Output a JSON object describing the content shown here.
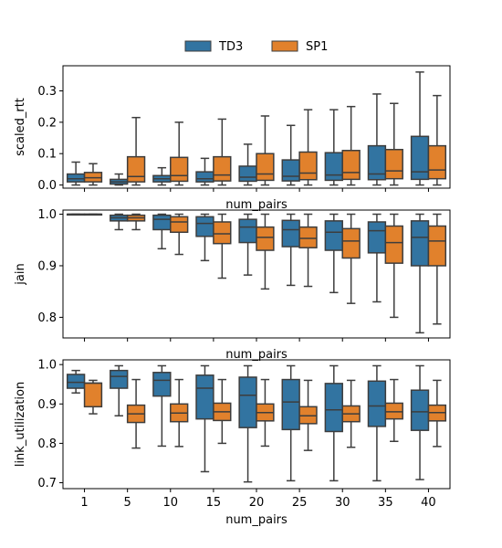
{
  "legend": {
    "placement": "top-center",
    "entries": [
      {
        "name": "TD3",
        "color": "#3274a1"
      },
      {
        "name": "SP1",
        "color": "#e1812c"
      }
    ]
  },
  "colors": {
    "TD3": "#3274a1",
    "SP1": "#e1812c",
    "whisker": "#3d3d3d"
  },
  "chart_data": [
    {
      "type": "box",
      "xlabel": "num_pairs",
      "ylabel": "scaled_rtt",
      "categories": [
        "1",
        "5",
        "10",
        "15",
        "20",
        "25",
        "30",
        "35",
        "40"
      ],
      "ylim": [
        -0.01,
        0.38
      ],
      "yticks": [
        0.0,
        0.1,
        0.2,
        0.3
      ],
      "ytick_labels": [
        "0.0",
        "0.1",
        "0.2",
        "0.3"
      ],
      "show_xtick_labels": false,
      "series": [
        {
          "name": "TD3",
          "boxes": [
            {
              "whislo": 0.0,
              "q1": 0.01,
              "med": 0.02,
              "q3": 0.035,
              "whishi": 0.073
            },
            {
              "whislo": 0.0,
              "q1": 0.003,
              "med": 0.01,
              "q3": 0.018,
              "whishi": 0.035
            },
            {
              "whislo": 0.0,
              "q1": 0.01,
              "med": 0.02,
              "q3": 0.03,
              "whishi": 0.055
            },
            {
              "whislo": 0.0,
              "q1": 0.01,
              "med": 0.02,
              "q3": 0.042,
              "whishi": 0.085
            },
            {
              "whislo": 0.0,
              "q1": 0.012,
              "med": 0.025,
              "q3": 0.06,
              "whishi": 0.13
            },
            {
              "whislo": 0.0,
              "q1": 0.013,
              "med": 0.028,
              "q3": 0.08,
              "whishi": 0.19
            },
            {
              "whislo": 0.0,
              "q1": 0.015,
              "med": 0.032,
              "q3": 0.103,
              "whishi": 0.24
            },
            {
              "whislo": 0.0,
              "q1": 0.017,
              "med": 0.035,
              "q3": 0.125,
              "whishi": 0.29
            },
            {
              "whislo": 0.0,
              "q1": 0.018,
              "med": 0.042,
              "q3": 0.155,
              "whishi": 0.36
            }
          ]
        },
        {
          "name": "SP1",
          "boxes": [
            {
              "whislo": 0.0,
              "q1": 0.01,
              "med": 0.023,
              "q3": 0.04,
              "whishi": 0.068
            },
            {
              "whislo": 0.0,
              "q1": 0.01,
              "med": 0.027,
              "q3": 0.09,
              "whishi": 0.215
            },
            {
              "whislo": 0.0,
              "q1": 0.012,
              "med": 0.03,
              "q3": 0.088,
              "whishi": 0.2
            },
            {
              "whislo": 0.0,
              "q1": 0.013,
              "med": 0.032,
              "q3": 0.09,
              "whishi": 0.21
            },
            {
              "whislo": 0.0,
              "q1": 0.015,
              "med": 0.035,
              "q3": 0.1,
              "whishi": 0.22
            },
            {
              "whislo": 0.0,
              "q1": 0.017,
              "med": 0.038,
              "q3": 0.105,
              "whishi": 0.24
            },
            {
              "whislo": 0.0,
              "q1": 0.018,
              "med": 0.04,
              "q3": 0.11,
              "whishi": 0.25
            },
            {
              "whislo": 0.0,
              "q1": 0.02,
              "med": 0.045,
              "q3": 0.113,
              "whishi": 0.26
            },
            {
              "whislo": 0.0,
              "q1": 0.02,
              "med": 0.048,
              "q3": 0.125,
              "whishi": 0.285
            }
          ]
        }
      ]
    },
    {
      "type": "box",
      "xlabel": "num_pairs",
      "ylabel": "jain",
      "categories": [
        "1",
        "5",
        "10",
        "15",
        "20",
        "25",
        "30",
        "35",
        "40"
      ],
      "ylim": [
        0.76,
        1.008
      ],
      "yticks": [
        0.8,
        0.9,
        1.0
      ],
      "ytick_labels": [
        "0.8",
        "0.9",
        "1.0"
      ],
      "show_xtick_labels": false,
      "series": [
        {
          "name": "TD3",
          "boxes": [
            {
              "whislo": 0.999,
              "q1": 1.0,
              "med": 1.0,
              "q3": 1.0,
              "whishi": 1.0
            },
            {
              "whislo": 0.97,
              "q1": 0.987,
              "med": 0.993,
              "q3": 0.998,
              "whishi": 1.0
            },
            {
              "whislo": 0.933,
              "q1": 0.97,
              "med": 0.99,
              "q3": 0.998,
              "whishi": 1.0
            },
            {
              "whislo": 0.91,
              "q1": 0.957,
              "med": 0.982,
              "q3": 0.995,
              "whishi": 1.0
            },
            {
              "whislo": 0.882,
              "q1": 0.945,
              "med": 0.975,
              "q3": 0.99,
              "whishi": 1.0
            },
            {
              "whislo": 0.862,
              "q1": 0.937,
              "med": 0.97,
              "q3": 0.988,
              "whishi": 1.0
            },
            {
              "whislo": 0.848,
              "q1": 0.93,
              "med": 0.965,
              "q3": 0.987,
              "whishi": 1.0
            },
            {
              "whislo": 0.83,
              "q1": 0.925,
              "med": 0.968,
              "q3": 0.985,
              "whishi": 1.0
            },
            {
              "whislo": 0.77,
              "q1": 0.9,
              "med": 0.955,
              "q3": 0.987,
              "whishi": 1.0
            }
          ]
        },
        {
          "name": "SP1",
          "boxes": [
            {
              "whislo": 0.999,
              "q1": 1.0,
              "med": 1.0,
              "q3": 1.0,
              "whishi": 1.0
            },
            {
              "whislo": 0.97,
              "q1": 0.987,
              "med": 0.993,
              "q3": 0.998,
              "whishi": 1.0
            },
            {
              "whislo": 0.922,
              "q1": 0.965,
              "med": 0.985,
              "q3": 0.995,
              "whishi": 1.0
            },
            {
              "whislo": 0.876,
              "q1": 0.943,
              "med": 0.962,
              "q3": 0.985,
              "whishi": 1.0
            },
            {
              "whislo": 0.855,
              "q1": 0.93,
              "med": 0.955,
              "q3": 0.975,
              "whishi": 1.0
            },
            {
              "whislo": 0.86,
              "q1": 0.935,
              "med": 0.953,
              "q3": 0.975,
              "whishi": 1.0
            },
            {
              "whislo": 0.827,
              "q1": 0.915,
              "med": 0.948,
              "q3": 0.972,
              "whishi": 1.0
            },
            {
              "whislo": 0.8,
              "q1": 0.905,
              "med": 0.945,
              "q3": 0.977,
              "whishi": 1.0
            },
            {
              "whislo": 0.787,
              "q1": 0.9,
              "med": 0.948,
              "q3": 0.977,
              "whishi": 1.0
            }
          ]
        }
      ]
    },
    {
      "type": "box",
      "xlabel": "num_pairs",
      "ylabel": "link_utilization",
      "categories": [
        "1",
        "5",
        "10",
        "15",
        "20",
        "25",
        "30",
        "35",
        "40"
      ],
      "ylim": [
        0.685,
        1.012
      ],
      "yticks": [
        0.7,
        0.8,
        0.9,
        1.0
      ],
      "ytick_labels": [
        "0.7",
        "0.8",
        "0.9",
        "1.0"
      ],
      "show_xtick_labels": true,
      "series": [
        {
          "name": "TD3",
          "boxes": [
            {
              "whislo": 0.928,
              "q1": 0.94,
              "med": 0.955,
              "q3": 0.975,
              "whishi": 0.985
            },
            {
              "whislo": 0.87,
              "q1": 0.94,
              "med": 0.97,
              "q3": 0.985,
              "whishi": 0.997
            },
            {
              "whislo": 0.793,
              "q1": 0.92,
              "med": 0.96,
              "q3": 0.98,
              "whishi": 0.997
            },
            {
              "whislo": 0.728,
              "q1": 0.862,
              "med": 0.94,
              "q3": 0.973,
              "whishi": 0.997
            },
            {
              "whislo": 0.702,
              "q1": 0.84,
              "med": 0.922,
              "q3": 0.968,
              "whishi": 0.997
            },
            {
              "whislo": 0.705,
              "q1": 0.835,
              "med": 0.905,
              "q3": 0.962,
              "whishi": 0.997
            },
            {
              "whislo": 0.705,
              "q1": 0.83,
              "med": 0.885,
              "q3": 0.952,
              "whishi": 0.997
            },
            {
              "whislo": 0.705,
              "q1": 0.843,
              "med": 0.895,
              "q3": 0.958,
              "whishi": 0.997
            },
            {
              "whislo": 0.708,
              "q1": 0.833,
              "med": 0.88,
              "q3": 0.935,
              "whishi": 0.997
            }
          ]
        },
        {
          "name": "SP1",
          "boxes": [
            {
              "whislo": 0.875,
              "q1": 0.893,
              "med": 0.953,
              "q3": 0.953,
              "whishi": 0.96
            },
            {
              "whislo": 0.788,
              "q1": 0.853,
              "med": 0.875,
              "q3": 0.897,
              "whishi": 0.962
            },
            {
              "whislo": 0.792,
              "q1": 0.855,
              "med": 0.877,
              "q3": 0.9,
              "whishi": 0.962
            },
            {
              "whislo": 0.8,
              "q1": 0.858,
              "med": 0.88,
              "q3": 0.902,
              "whishi": 0.962
            },
            {
              "whislo": 0.793,
              "q1": 0.857,
              "med": 0.878,
              "q3": 0.9,
              "whishi": 0.962
            },
            {
              "whislo": 0.782,
              "q1": 0.85,
              "med": 0.87,
              "q3": 0.893,
              "whishi": 0.96
            },
            {
              "whislo": 0.79,
              "q1": 0.855,
              "med": 0.875,
              "q3": 0.895,
              "whishi": 0.96
            },
            {
              "whislo": 0.805,
              "q1": 0.862,
              "med": 0.88,
              "q3": 0.902,
              "whishi": 0.962
            },
            {
              "whislo": 0.792,
              "q1": 0.857,
              "med": 0.878,
              "q3": 0.897,
              "whishi": 0.96
            }
          ]
        }
      ]
    }
  ]
}
